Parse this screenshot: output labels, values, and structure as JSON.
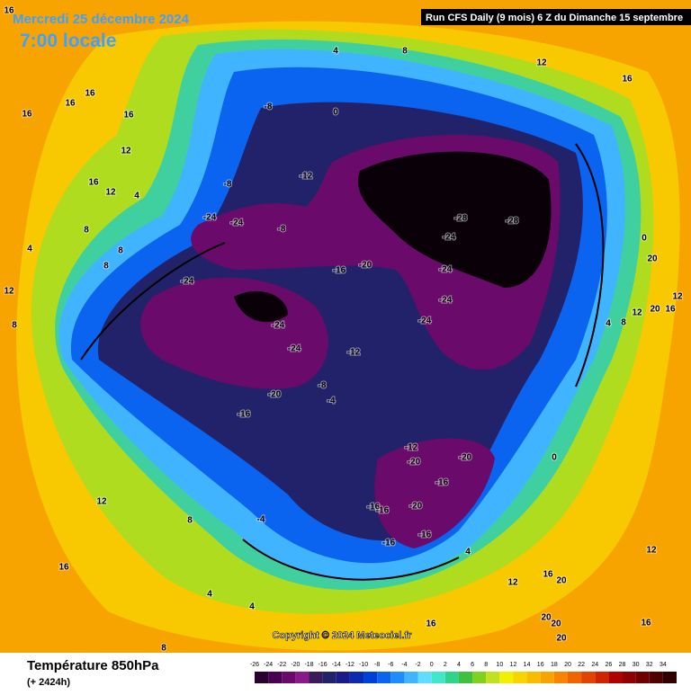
{
  "header": {
    "date": "Mercredi 25 décembre 2024",
    "time": "7:00 locale",
    "run": "Run CFS Daily (9 mois) 6 Z du Dimanche 15 septembre"
  },
  "copyright": "Copyright © 2024 Meteociel.fr",
  "legend": {
    "title": "Température 850hPa",
    "subtitle": "(+ 2424h)",
    "ticks": [
      -26,
      -24,
      -22,
      -20,
      -18,
      -16,
      -14,
      -12,
      -10,
      -8,
      -6,
      -4,
      -2,
      0,
      2,
      4,
      6,
      8,
      10,
      12,
      14,
      16,
      18,
      20,
      22,
      24,
      26,
      28,
      30,
      32,
      34
    ],
    "colors": [
      "#2a0030",
      "#4a0050",
      "#6a0a6a",
      "#8a1a8a",
      "#3a1a5a",
      "#22226a",
      "#1a1a8a",
      "#0a2ab0",
      "#0040d8",
      "#0a64f0",
      "#1e8cff",
      "#40b4ff",
      "#60dcff",
      "#40e8c8",
      "#30d488",
      "#40c040",
      "#80d020",
      "#c0e020",
      "#f0f000",
      "#f8d400",
      "#f8bc00",
      "#f8a400",
      "#f88400",
      "#f06400",
      "#e04400",
      "#d02400",
      "#b00000",
      "#900000",
      "#700000",
      "#500000",
      "#300000"
    ]
  },
  "contour_labels": [
    16,
    16,
    16,
    16,
    16,
    12,
    16,
    12,
    4,
    8,
    4,
    8,
    8,
    12,
    8,
    -24,
    -24,
    -8,
    -8,
    -12,
    -8,
    4,
    8,
    0,
    12,
    16,
    -28,
    -28,
    -24,
    -24,
    -24,
    -24,
    -16,
    -20,
    -24,
    -24,
    -24,
    -12,
    -8,
    -4,
    -20,
    -16,
    0,
    20,
    12,
    12,
    20,
    16,
    8,
    4,
    -12,
    -20,
    -20,
    -16,
    -20,
    -16,
    -16,
    -16,
    -16,
    0,
    12,
    8,
    -4,
    4,
    12,
    16,
    20,
    12,
    4,
    4,
    16,
    16,
    16,
    20,
    20,
    20,
    8
  ]
}
